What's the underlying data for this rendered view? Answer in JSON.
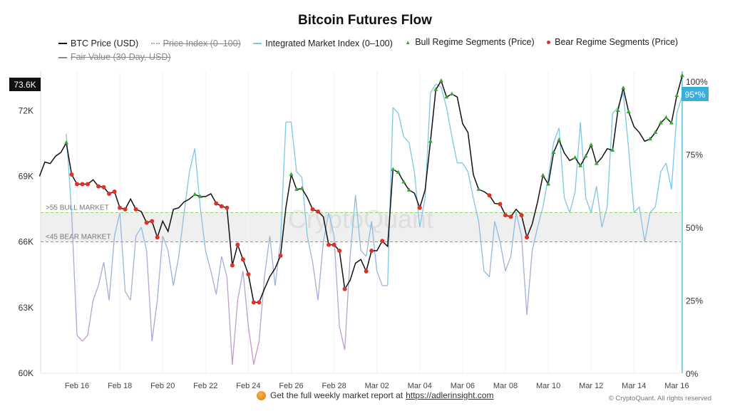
{
  "chart_data": {
    "type": "line",
    "title": "Bitcoin Futures Flow",
    "legend": [
      {
        "name": "BTC Price (USD)",
        "color": "#111111",
        "style": "line",
        "visible": true
      },
      {
        "name": "Price Index (0–100)",
        "color": "#aaaaaa",
        "style": "dotted",
        "visible": false
      },
      {
        "name": "Integrated Market Index (0–100)",
        "color": "#7cc8e6",
        "style": "line",
        "visible": true
      },
      {
        "name": "Bull Regime Segments (Price)",
        "color": "#3aa335",
        "style": "triangle",
        "visible": true
      },
      {
        "name": "Bear Regime Segments (Price)",
        "color": "#e0302a",
        "style": "dot",
        "visible": true
      },
      {
        "name": "Fair Value (30-Day, USD)",
        "color": "#888888",
        "style": "line",
        "visible": false
      }
    ],
    "legend_position": "top",
    "x_ticks": [
      "Feb 16",
      "Feb 18",
      "Feb 20",
      "Feb 22",
      "Feb 24",
      "Feb 26",
      "Feb 28",
      "Mar 02",
      "Mar 04",
      "Mar 06",
      "Mar 08",
      "Mar 10",
      "Mar 12",
      "Mar 14",
      "Mar 16"
    ],
    "y_left": {
      "ticks": [
        "60K",
        "63K",
        "66K",
        "69K",
        "72K"
      ],
      "range_k": [
        60,
        73.8
      ],
      "unit": "K USD"
    },
    "y_right": {
      "ticks": [
        "0%",
        "25%",
        "50%",
        "75%",
        "100%"
      ],
      "range": [
        0,
        100
      ]
    },
    "latest_price_label": "73.6K",
    "latest_index_label": "95*%",
    "bands": [
      {
        "label": ">55 BULL MARKET",
        "value": 55,
        "color": "#8fd46a"
      },
      {
        "label": "<45 BEAR MARKET",
        "value": 45,
        "color": "#f06a7a"
      }
    ],
    "grid": "vertical-light",
    "series_points": [
      [
        "Feb 14 06h",
        69.0,
        "n",
        null
      ],
      [
        "Feb 14 12h",
        69.65,
        "n",
        null
      ],
      [
        "Feb 14 18h",
        69.58,
        "n",
        null
      ],
      [
        "Feb 15 00h",
        69.92,
        "n",
        null
      ],
      [
        "Feb 15 06h",
        70.09,
        "n",
        null
      ],
      [
        "Feb 15 12h",
        70.53,
        "bull",
        82
      ],
      [
        "Feb 15 18h",
        69.08,
        "bear",
        55
      ],
      [
        "Feb 16 00h",
        68.64,
        "bear",
        13
      ],
      [
        "Feb 16 06h",
        68.64,
        "bear",
        11
      ],
      [
        "Feb 16 12h",
        68.64,
        "bear",
        13
      ],
      [
        "Feb 16 18h",
        68.84,
        "n",
        25
      ],
      [
        "Feb 17 00h",
        68.54,
        "bear",
        30
      ],
      [
        "Feb 17 06h",
        68.5,
        "bear",
        38
      ],
      [
        "Feb 17 12h",
        68.2,
        "bear",
        25
      ],
      [
        "Feb 17 18h",
        68.3,
        "bear",
        47
      ],
      [
        "Feb 18 00h",
        67.56,
        "bear",
        55
      ],
      [
        "Feb 18 06h",
        67.49,
        "bear",
        28
      ],
      [
        "Feb 18 12h",
        67.96,
        "n",
        25
      ],
      [
        "Feb 18 18h",
        67.49,
        "bear",
        47
      ],
      [
        "Feb 19 00h",
        67.39,
        "n",
        50
      ],
      [
        "Feb 19 06h",
        66.88,
        "bear",
        42
      ],
      [
        "Feb 19 12h",
        66.95,
        "bear",
        11
      ],
      [
        "Feb 19 18h",
        66.21,
        "bear",
        25
      ],
      [
        "Feb 20 00h",
        66.95,
        "n",
        47
      ],
      [
        "Feb 20 06h",
        66.48,
        "n",
        42
      ],
      [
        "Feb 20 12h",
        67.49,
        "n",
        30
      ],
      [
        "Feb 20 18h",
        67.56,
        "n",
        40
      ],
      [
        "Feb 21 00h",
        67.83,
        "n",
        55
      ],
      [
        "Feb 21 06h",
        67.96,
        "n",
        69
      ],
      [
        "Feb 21 12h",
        68.17,
        "bull",
        77
      ],
      [
        "Feb 21 18h",
        68.07,
        "bull",
        57
      ],
      [
        "Feb 22 00h",
        68.07,
        "n",
        42
      ],
      [
        "Feb 22 06h",
        68.2,
        "n",
        35
      ],
      [
        "Feb 22 12h",
        67.76,
        "bear",
        27
      ],
      [
        "Feb 22 18h",
        67.63,
        "bear",
        40
      ],
      [
        "Feb 23 00h",
        67.56,
        "bear",
        33
      ],
      [
        "Feb 23 06h",
        64.93,
        "bear",
        3
      ],
      [
        "Feb 23 12h",
        65.87,
        "bear",
        25
      ],
      [
        "Feb 23 18h",
        65.2,
        "bear",
        35
      ],
      [
        "Feb 24 00h",
        64.52,
        "bear",
        16
      ],
      [
        "Feb 24 06h",
        63.24,
        "bear",
        3
      ],
      [
        "Feb 24 12h",
        63.24,
        "bear",
        11
      ],
      [
        "Feb 24 18h",
        63.85,
        "n",
        33
      ],
      [
        "Feb 25 00h",
        64.42,
        "n",
        47
      ],
      [
        "Feb 25 06h",
        64.79,
        "n",
        30
      ],
      [
        "Feb 25 12h",
        65.37,
        "bear",
        45
      ],
      [
        "Feb 25 18h",
        67.56,
        "n",
        86
      ],
      [
        "Feb 26 00h",
        69.08,
        "bull",
        86
      ],
      [
        "Feb 26 06h",
        68.4,
        "bull",
        69
      ],
      [
        "Feb 26 12h",
        68.44,
        "bull",
        67
      ],
      [
        "Feb 26 18h",
        68.03,
        "n",
        47
      ],
      [
        "Feb 27 00h",
        67.49,
        "bear",
        38
      ],
      [
        "Feb 27 06h",
        67.39,
        "bear",
        25
      ],
      [
        "Feb 27 12h",
        67.15,
        "n",
        45
      ],
      [
        "Feb 27 18h",
        65.87,
        "bear",
        55
      ],
      [
        "Feb 28 00h",
        65.87,
        "bear",
        47
      ],
      [
        "Feb 28 06h",
        65.6,
        "bear",
        16
      ],
      [
        "Feb 28 12h",
        63.85,
        "bear",
        8
      ],
      [
        "Feb 28 18h",
        64.25,
        "n",
        40
      ],
      [
        "Mar 01 00h",
        65.03,
        "n",
        61
      ],
      [
        "Mar 01 06h",
        65.2,
        "n",
        42
      ],
      [
        "Mar 01 12h",
        64.66,
        "bear",
        40
      ],
      [
        "Mar 01 18h",
        65.6,
        "bear",
        52
      ],
      [
        "Mar 02 00h",
        65.6,
        "n",
        35
      ],
      [
        "Mar 02 06h",
        66.04,
        "bear",
        30
      ],
      [
        "Mar 02 12h",
        65.8,
        "n",
        30
      ],
      [
        "Mar 02 18h",
        69.31,
        "bull",
        91
      ],
      [
        "Mar 03 00h",
        69.18,
        "bull",
        89
      ],
      [
        "Mar 03 06h",
        68.74,
        "bull",
        81
      ],
      [
        "Mar 03 12h",
        68.37,
        "bull",
        79
      ],
      [
        "Mar 03 18h",
        68.23,
        "n",
        69
      ],
      [
        "Mar 04 00h",
        67.56,
        "bear",
        50
      ],
      [
        "Mar 04 06h",
        68.37,
        "n",
        60
      ],
      [
        "Mar 04 12h",
        70.6,
        "bull",
        96
      ],
      [
        "Mar 04 18h",
        72.96,
        "bull",
        99
      ],
      [
        "Mar 05 00h",
        73.36,
        "bull",
        98
      ],
      [
        "Mar 05 06h",
        72.62,
        "bull",
        91
      ],
      [
        "Mar 05 12h",
        72.76,
        "bull",
        81
      ],
      [
        "Mar 05 18h",
        72.62,
        "n",
        72
      ],
      [
        "Mar 06 00h",
        71.41,
        "n",
        72
      ],
      [
        "Mar 06 06h",
        71.0,
        "n",
        69
      ],
      [
        "Mar 06 12h",
        69.08,
        "n",
        60
      ],
      [
        "Mar 06 18h",
        68.4,
        "bull",
        52
      ],
      [
        "Mar 07 00h",
        68.3,
        "n",
        35
      ],
      [
        "Mar 07 06h",
        68.13,
        "bear",
        33
      ],
      [
        "Mar 07 12h",
        67.76,
        "n",
        52
      ],
      [
        "Mar 07 18h",
        67.73,
        "bear",
        45
      ],
      [
        "Mar 08 00h",
        67.22,
        "bear",
        35
      ],
      [
        "Mar 08 06h",
        67.15,
        "bear",
        40
      ],
      [
        "Mar 08 12h",
        67.49,
        "n",
        55
      ],
      [
        "Mar 08 18h",
        67.22,
        "bear",
        47
      ],
      [
        "Mar 09 00h",
        66.21,
        "bear",
        20
      ],
      [
        "Mar 09 06h",
        66.82,
        "n",
        42
      ],
      [
        "Mar 09 12h",
        67.83,
        "n",
        50
      ],
      [
        "Mar 09 18h",
        69.04,
        "bull",
        57
      ],
      [
        "Mar 10 00h",
        68.64,
        "bull",
        67
      ],
      [
        "Mar 10 06h",
        70.09,
        "bull",
        79
      ],
      [
        "Mar 10 12h",
        70.66,
        "bull",
        84
      ],
      [
        "Mar 10 18h",
        70.06,
        "n",
        60
      ],
      [
        "Mar 11 00h",
        69.72,
        "n",
        55
      ],
      [
        "Mar 11 06h",
        69.85,
        "bull",
        62
      ],
      [
        "Mar 11 12h",
        69.48,
        "bull",
        86
      ],
      [
        "Mar 11 18h",
        69.92,
        "bull",
        60
      ],
      [
        "Mar 12 00h",
        70.43,
        "bull",
        55
      ],
      [
        "Mar 12 06h",
        69.58,
        "bull",
        64
      ],
      [
        "Mar 12 12h",
        69.85,
        "n",
        50
      ],
      [
        "Mar 12 18h",
        70.26,
        "n",
        57
      ],
      [
        "Mar 13 00h",
        70.19,
        "bull",
        89
      ],
      [
        "Mar 13 06h",
        72.01,
        "bull",
        91
      ],
      [
        "Mar 13 12h",
        73.03,
        "bull",
        96
      ],
      [
        "Mar 13 18h",
        71.95,
        "bull",
        77
      ],
      [
        "Mar 14 00h",
        71.27,
        "n",
        55
      ],
      [
        "Mar 14 06h",
        71.0,
        "n",
        57
      ],
      [
        "Mar 14 12h",
        70.6,
        "n",
        45
      ],
      [
        "Mar 14 18h",
        70.7,
        "bull",
        55
      ],
      [
        "Mar 15 00h",
        71.0,
        "bull",
        57
      ],
      [
        "Mar 15 06h",
        71.44,
        "bull",
        69
      ],
      [
        "Mar 15 12h",
        71.68,
        "bull",
        72
      ],
      [
        "Mar 15 18h",
        71.44,
        "bull",
        63
      ],
      [
        "Mar 16 00h",
        72.69,
        "bull",
        89
      ],
      [
        "Mar 16 06h",
        73.6,
        "bull",
        95
      ]
    ],
    "series_point_fields": [
      "time",
      "btc_price_k",
      "regime",
      "integrated_market_index"
    ],
    "watermark": "CryptoQuant"
  },
  "footer": {
    "text": "Get the full weekly market report at",
    "link": "https://adlerinsight.com",
    "copyright": "© CryptoQuant. All rights reserved"
  }
}
